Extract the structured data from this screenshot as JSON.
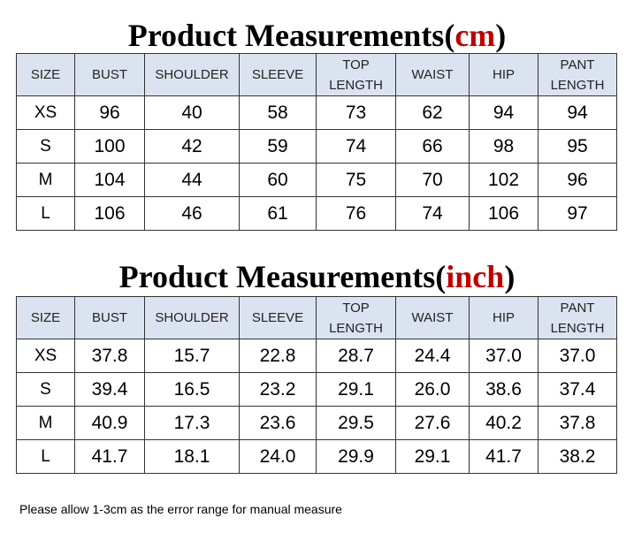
{
  "tables": [
    {
      "title_prefix": "Product Measurements(",
      "unit": "cm",
      "title_suffix": ")",
      "header": [
        "SIZE",
        "BUST",
        "SHOULDER",
        "SLEEVE",
        "TOP LENGTH",
        "WAIST",
        "HIP",
        "PANT LENGTH"
      ],
      "rows": [
        [
          "XS",
          "96",
          "40",
          "58",
          "73",
          "62",
          "94",
          "94"
        ],
        [
          "S",
          "100",
          "42",
          "59",
          "74",
          "66",
          "98",
          "95"
        ],
        [
          "M",
          "104",
          "44",
          "60",
          "75",
          "70",
          "102",
          "96"
        ],
        [
          "L",
          "106",
          "46",
          "61",
          "76",
          "74",
          "106",
          "97"
        ]
      ]
    },
    {
      "title_prefix": "Product Measurements(",
      "unit": "inch",
      "title_suffix": ")",
      "header": [
        "SIZE",
        "BUST",
        "SHOULDER",
        "SLEEVE",
        "TOP LENGTH",
        "WAIST",
        "HIP",
        "PANT LENGTH"
      ],
      "rows": [
        [
          "XS",
          "37.8",
          "15.7",
          "22.8",
          "28.7",
          "24.4",
          "37.0",
          "37.0"
        ],
        [
          "S",
          "39.4",
          "16.5",
          "23.2",
          "29.1",
          "26.0",
          "38.6",
          "37.4"
        ],
        [
          "M",
          "40.9",
          "17.3",
          "23.6",
          "29.5",
          "27.6",
          "40.2",
          "37.8"
        ],
        [
          "L",
          "41.7",
          "18.1",
          "24.0",
          "29.9",
          "29.1",
          "41.7",
          "38.2"
        ]
      ]
    }
  ],
  "note": "Please allow 1-3cm as the error range for manual measure"
}
